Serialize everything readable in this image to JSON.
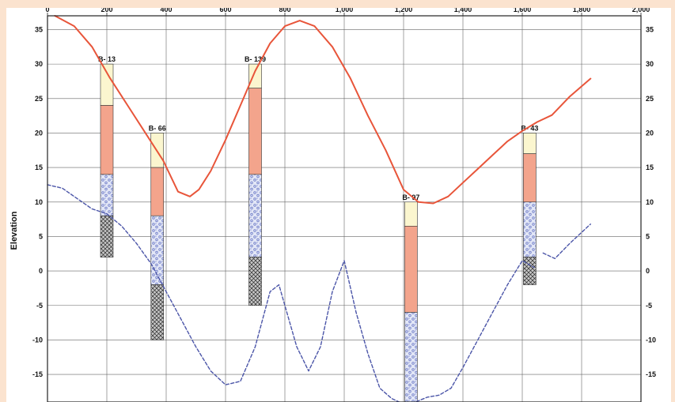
{
  "chart_data": {
    "type": "line",
    "ylabel": "Elevation",
    "xlim": [
      0,
      2000
    ],
    "ylim": [
      -19,
      37
    ],
    "x_ticks": [
      {
        "value": 0,
        "label": "0"
      },
      {
        "value": 200,
        "label": "200"
      },
      {
        "value": 400,
        "label": "400"
      },
      {
        "value": 600,
        "label": "600"
      },
      {
        "value": 800,
        "label": "800"
      },
      {
        "value": 1000,
        "label": "1,000"
      },
      {
        "value": 1200,
        "label": "1,200"
      },
      {
        "value": 1400,
        "label": "1,400"
      },
      {
        "value": 1600,
        "label": "1,600"
      },
      {
        "value": 1800,
        "label": "1,800"
      },
      {
        "value": 2000,
        "label": "2,000"
      }
    ],
    "y_ticks": [
      {
        "value": 35,
        "label": "35"
      },
      {
        "value": 30,
        "label": "30"
      },
      {
        "value": 25,
        "label": "25"
      },
      {
        "value": 20,
        "label": "20"
      },
      {
        "value": 15,
        "label": "15"
      },
      {
        "value": 10,
        "label": "10"
      },
      {
        "value": 5,
        "label": "5"
      },
      {
        "value": 0,
        "label": "0"
      },
      {
        "value": -5,
        "label": "-5"
      },
      {
        "value": -10,
        "label": "-10"
      },
      {
        "value": -15,
        "label": "-15"
      }
    ],
    "grid": true,
    "series": [
      {
        "style": "solid",
        "color": "#e8553a",
        "x": [
          25,
          90,
          150,
          210,
          270,
          330,
          390,
          440,
          480,
          510,
          550,
          600,
          650,
          700,
          750,
          800,
          850,
          900,
          960,
          1020,
          1080,
          1140,
          1200,
          1250,
          1300,
          1350,
          1400,
          1450,
          1500,
          1550,
          1600,
          1650,
          1700,
          1760,
          1830
        ],
        "y": [
          37,
          35.5,
          32.5,
          28,
          24,
          20,
          16,
          11.5,
          10.8,
          11.8,
          14.5,
          19,
          24,
          29,
          33,
          35.5,
          36.3,
          35.5,
          32.5,
          28,
          22.5,
          17.5,
          11.8,
          10,
          9.8,
          10.8,
          12.8,
          14.8,
          16.8,
          18.8,
          20.3,
          21.6,
          22.6,
          25.3,
          27.9
        ]
      },
      {
        "style": "dashed",
        "color": "#4b55a8",
        "x": [
          0,
          50,
          100,
          150,
          200,
          250,
          300,
          350,
          400,
          450,
          500,
          550,
          600,
          650,
          700,
          750,
          780,
          800,
          840,
          880,
          920,
          960,
          1000,
          1040,
          1080,
          1120,
          1160,
          1200,
          1240,
          1280,
          1320,
          1360,
          1400,
          1450,
          1500,
          1550,
          1600,
          1620,
          1640
        ],
        "y": [
          12.5,
          12,
          10.5,
          9,
          8.3,
          6.5,
          4,
          1,
          -3,
          -7,
          -11,
          -14.5,
          -16.5,
          -16,
          -11,
          -3,
          -2,
          -5,
          -11,
          -14.5,
          -11,
          -3,
          1.5,
          -6,
          -12,
          -17,
          -18.5,
          -19.3,
          -19,
          -18.3,
          -18,
          -17,
          -14,
          -10,
          -6,
          -2,
          1.5,
          1,
          0.5
        ]
      },
      {
        "style": "dashed",
        "color": "#4b55a8",
        "x": [
          1670,
          1710,
          1760,
          1830
        ],
        "y": [
          2.6,
          1.8,
          4,
          6.8
        ]
      }
    ],
    "boreholes": [
      {
        "label": "B- 13",
        "x": 200,
        "layers": [
          {
            "top": 30,
            "bottom": 24,
            "material": "cream"
          },
          {
            "top": 24,
            "bottom": 14,
            "material": "salmon"
          },
          {
            "top": 14,
            "bottom": 8,
            "material": "gravel"
          },
          {
            "top": 8,
            "bottom": 2,
            "material": "hatched"
          }
        ]
      },
      {
        "label": "B- 66",
        "x": 370,
        "layers": [
          {
            "top": 20,
            "bottom": 15,
            "material": "cream"
          },
          {
            "top": 15,
            "bottom": 8,
            "material": "salmon"
          },
          {
            "top": 8,
            "bottom": -2,
            "material": "gravel"
          },
          {
            "top": -2,
            "bottom": -10,
            "material": "hatched"
          }
        ]
      },
      {
        "label": "B- 139",
        "x": 700,
        "layers": [
          {
            "top": 30,
            "bottom": 26.5,
            "material": "cream"
          },
          {
            "top": 26.5,
            "bottom": 14,
            "material": "salmon"
          },
          {
            "top": 14,
            "bottom": 2,
            "material": "gravel"
          },
          {
            "top": 2,
            "bottom": -5,
            "material": "hatched"
          }
        ]
      },
      {
        "label": "B- 97",
        "x": 1225,
        "layers": [
          {
            "top": 10,
            "bottom": 6.5,
            "material": "cream"
          },
          {
            "top": 6.5,
            "bottom": -6,
            "material": "salmon"
          },
          {
            "top": -6,
            "bottom": -19,
            "material": "gravel"
          }
        ]
      },
      {
        "label": "B- 43",
        "x": 1625,
        "layers": [
          {
            "top": 20,
            "bottom": 17,
            "material": "cream"
          },
          {
            "top": 17,
            "bottom": 10,
            "material": "salmon"
          },
          {
            "top": 10,
            "bottom": 2,
            "material": "gravel"
          },
          {
            "top": 2,
            "bottom": -2,
            "material": "hatched"
          }
        ]
      }
    ],
    "colors": {
      "grid": "#666666",
      "cream": "#fbf6cf",
      "salmon": "#f3a48c",
      "gravel_bg": "#e2e6f6",
      "gravel_dot": "#6e7cc8",
      "hatched_bg": "#c8c8c8",
      "hatched_line": "#2a2a2a",
      "frame": "#222222"
    }
  }
}
